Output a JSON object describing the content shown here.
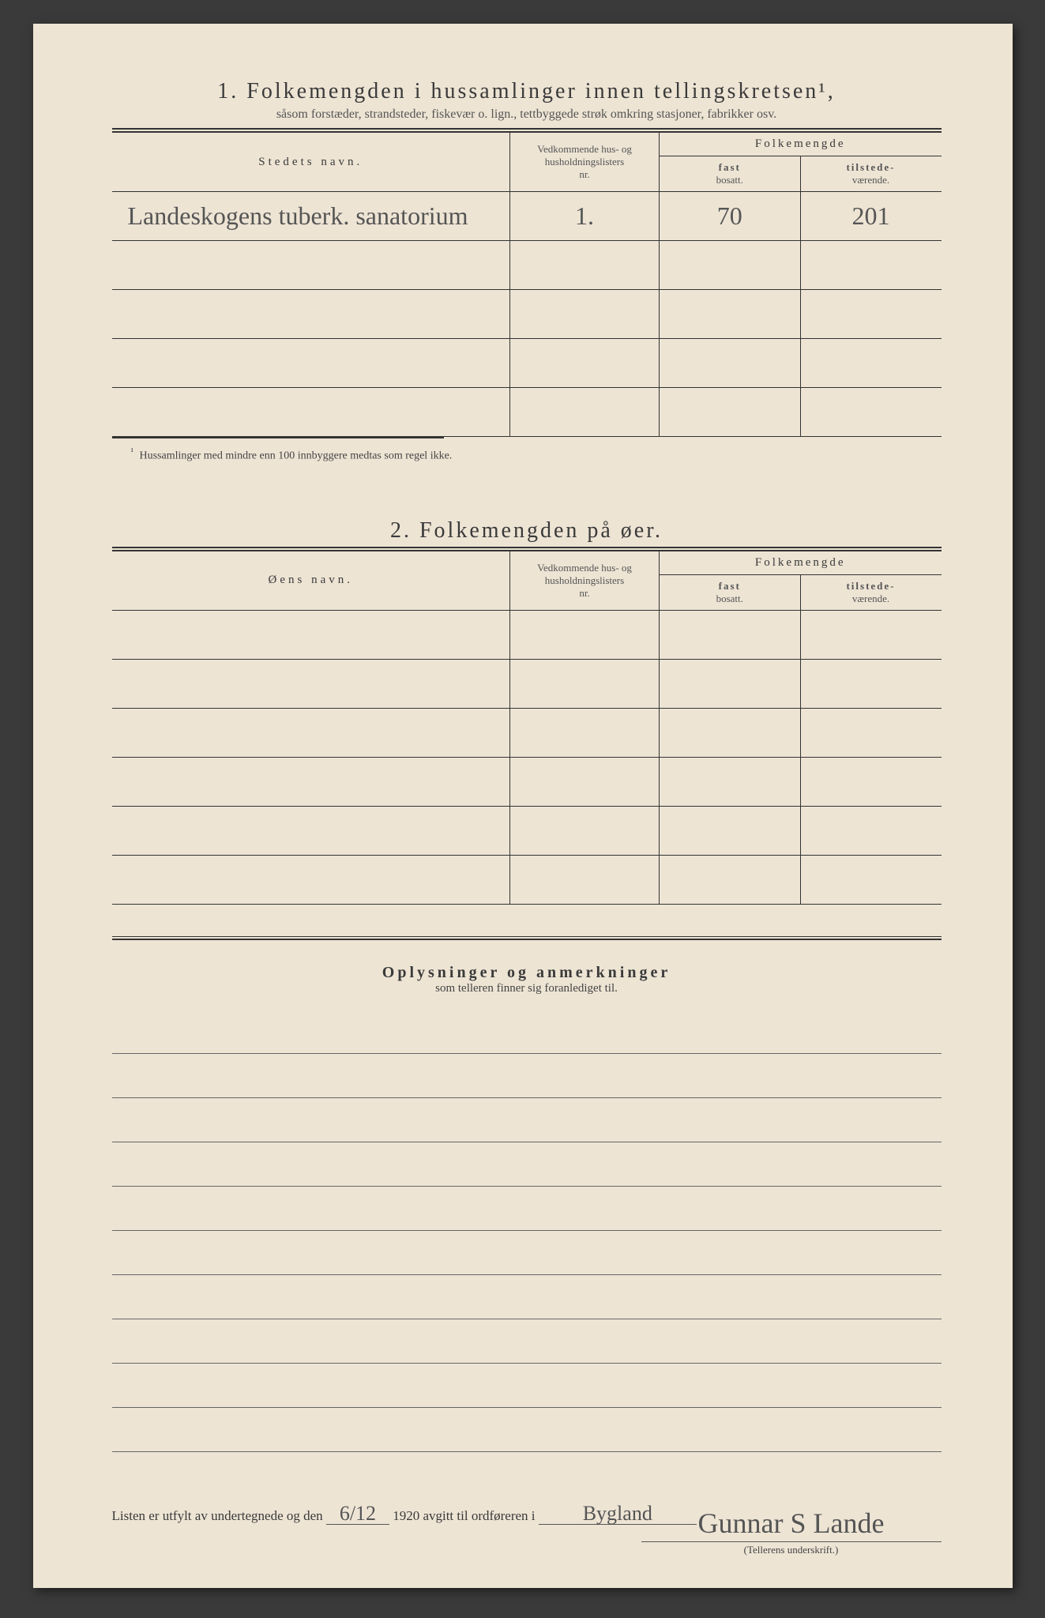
{
  "section1": {
    "number": "1.",
    "title": "Folkemengden i hussamlinger innen tellingskretsen¹,",
    "subtitle": "såsom forstæder, strandsteder, fiskevær o. lign., tettbyggede strøk omkring stasjoner, fabrikker osv.",
    "columns": {
      "name": "Stedets navn.",
      "nr_line1": "Vedkommende hus- og",
      "nr_line2": "husholdningslisters",
      "nr_line3": "nr.",
      "group": "Folkemengde",
      "fast_line1": "fast",
      "fast_line2": "bosatt.",
      "tilst_line1": "tilstede-",
      "tilst_line2": "værende."
    },
    "rows": [
      {
        "name": "Landeskogens tuberk. sanatorium",
        "nr": "1.",
        "fast": "70",
        "tilst": "201"
      },
      {
        "name": "",
        "nr": "",
        "fast": "",
        "tilst": ""
      },
      {
        "name": "",
        "nr": "",
        "fast": "",
        "tilst": ""
      },
      {
        "name": "",
        "nr": "",
        "fast": "",
        "tilst": ""
      },
      {
        "name": "",
        "nr": "",
        "fast": "",
        "tilst": ""
      }
    ],
    "footnote_marker": "¹",
    "footnote": "Hussamlinger med mindre enn 100 innbyggere medtas som regel ikke."
  },
  "section2": {
    "number": "2.",
    "title": "Folkemengden på øer.",
    "columns": {
      "name": "Øens navn."
    },
    "row_count": 6
  },
  "section3": {
    "title": "Oplysninger og anmerkninger",
    "subtitle": "som telleren finner sig foranlediget til.",
    "line_count": 10
  },
  "footer": {
    "prefix": "Listen er utfylt av undertegnede og den",
    "date": "6/12",
    "year": "1920",
    "middle": "avgitt til ordføreren i",
    "place": "Bygland",
    "signature": "Gunnar S Lande",
    "sig_label": "(Tellerens underskrift.)"
  },
  "colors": {
    "paper": "#ede4d4",
    "ink": "#3a3a3a",
    "handwriting": "#555"
  }
}
